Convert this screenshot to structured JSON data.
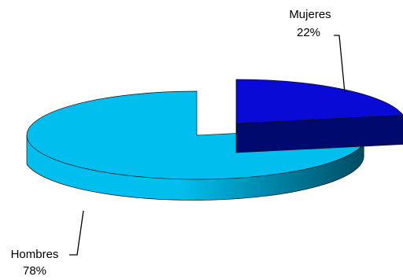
{
  "chart_data": {
    "type": "pie",
    "title": "",
    "style": "3d-exploded",
    "categories": [
      "Mujeres",
      "Hombres"
    ],
    "values": [
      22,
      78
    ],
    "value_labels": [
      "22%",
      "78%"
    ],
    "colors": {
      "Mujeres": {
        "top": "#0A0AD6",
        "side": "#000A6E"
      },
      "Hombres": {
        "top": "#00BFEF",
        "side_light": "#00BFEF",
        "side_dark": "#004A60"
      }
    },
    "legend": "none"
  }
}
